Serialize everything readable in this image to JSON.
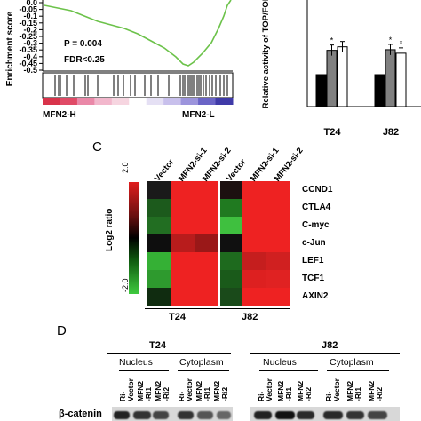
{
  "gsea": {
    "y_axis_label": "Enrichment score",
    "y_ticks": [
      "0.0",
      "-0.05",
      "-0.1",
      "-0.15",
      "-0.2",
      "-0.25",
      "-0.3",
      "-0.35",
      "-0.4",
      "-0.45",
      "-0.5"
    ],
    "p_value": "P = 0.004",
    "fdr": "FDR<0.25",
    "left_label": "MFN2-H",
    "right_label": "MFN2-L",
    "line_color": "#6cc24a"
  },
  "topflash": {
    "y_axis_label": "Relative activity of TOP/FOP Flash",
    "categories": [
      "T24",
      "J82"
    ],
    "series_colors": [
      "#000000",
      "#808080",
      "#ffffff"
    ],
    "values": [
      [
        1.0,
        1.76,
        1.87
      ],
      [
        1.0,
        1.78,
        1.67
      ]
    ],
    "significance_marks": [
      "*",
      "*",
      "*"
    ]
  },
  "heatmap": {
    "panel_label": "C",
    "colorbar_title": "Log2 ratio",
    "colorbar_max": "2.0",
    "colorbar_min": "-2.0",
    "columns": [
      "Vector",
      "MFN2-si-1",
      "MFN2-si-2",
      "Vector",
      "MFN2-si-1",
      "MFN2-si-2"
    ],
    "rows": [
      "CCND1",
      "CTLA4",
      "C-myc",
      "c-Jun",
      "LEF1",
      "TCF1",
      "AXIN2"
    ],
    "group_labels": [
      "T24",
      "J82"
    ],
    "cells": [
      [
        "#1a1a1a",
        "#ee2222",
        "#ee2222",
        "#1c1010",
        "#ee2222",
        "#ee2222"
      ],
      [
        "#1c5a1c",
        "#ee2222",
        "#ee2222",
        "#207a20",
        "#ee2222",
        "#ee2222"
      ],
      [
        "#226e22",
        "#ee2222",
        "#ee2222",
        "#3fc03f",
        "#ee2222",
        "#ee2222"
      ],
      [
        "#0e0e0e",
        "#b81c1c",
        "#9a1818",
        "#101010",
        "#ee2222",
        "#ee2222"
      ],
      [
        "#35b035",
        "#ee2222",
        "#ee2222",
        "#1e6a1e",
        "#c51e1e",
        "#d02020"
      ],
      [
        "#2e9a2e",
        "#ee2222",
        "#ee2222",
        "#1a5a1a",
        "#dd2020",
        "#e02222"
      ],
      [
        "#102c10",
        "#ee2222",
        "#ee2222",
        "#1a4a1a",
        "#ee2222",
        "#ee2222"
      ]
    ]
  },
  "western": {
    "panel_label": "D",
    "groups": [
      "T24",
      "J82"
    ],
    "fractions": [
      "Nucleus",
      "Cytoplasm",
      "Nucleus",
      "Cytoplasm"
    ],
    "lanes": [
      "Ri-Vector",
      "MFN2-RI1",
      "MFN2-Ri2",
      "Ri-Vector",
      "MFN2-RI1",
      "MFN2-Ri2",
      "Ri-Vector",
      "MFN2-RI1",
      "MFN2-Ri2",
      "Ri-Vector",
      "MFN2-RI1",
      "MFN2-Ri2"
    ],
    "lane_lines": [
      [
        "Ri-",
        "Vector"
      ],
      [
        "MFN2",
        "-RI1"
      ],
      [
        "MFN2",
        "-Ri2"
      ],
      [
        "Ri-",
        "Vector"
      ],
      [
        "MFN2",
        "-RI1"
      ],
      [
        "MFN2",
        "-Ri2"
      ],
      [
        "Ri-",
        "Vector"
      ],
      [
        "MFN2",
        "-RI1"
      ],
      [
        "MFN2",
        "-Ri2"
      ],
      [
        "Ri-",
        "Vector"
      ],
      [
        "MFN2",
        "-RI1"
      ],
      [
        "MFN2",
        "-Ri2"
      ]
    ],
    "blot_label": "β-catenin"
  }
}
